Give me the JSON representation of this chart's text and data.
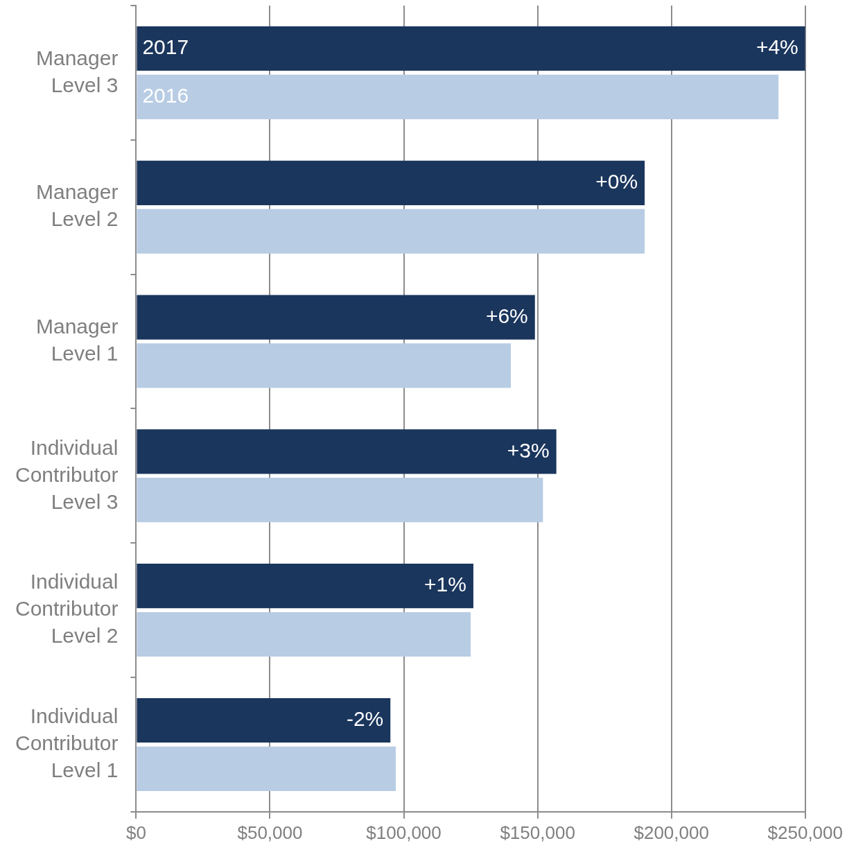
{
  "chart_data": {
    "type": "bar",
    "orientation": "horizontal",
    "categories": [
      "Manager Level 3",
      "Manager Level 2",
      "Manager Level 1",
      "Individual Contributor Level 3",
      "Individual Contributor Level 2",
      "Individual Contributor Level 1"
    ],
    "series": [
      {
        "name": "2017",
        "color": "#1b365d",
        "values": [
          250000,
          190000,
          149000,
          157000,
          126000,
          95000
        ]
      },
      {
        "name": "2016",
        "color": "#b8cce4",
        "values": [
          240000,
          190000,
          140000,
          152000,
          125000,
          97000
        ]
      }
    ],
    "annotations": [
      {
        "text": "+4%",
        "x": 250000,
        "y": "Manager Level 3"
      },
      {
        "text": "+0%",
        "x": 190000,
        "y": "Manager Level 2"
      },
      {
        "text": "+6%",
        "x": 149000,
        "y": "Manager Level 1"
      },
      {
        "text": "+3%",
        "x": 157000,
        "y": "Individual Contributor Level 3"
      },
      {
        "text": "+1%",
        "x": 126000,
        "y": "Individual Contributor Level 2"
      },
      {
        "text": "-2%",
        "x": 95000,
        "y": "Individual Contributor Level 1"
      }
    ],
    "xlim": [
      0,
      250000
    ],
    "xticks": [
      {
        "value": 0,
        "label": "$0"
      },
      {
        "value": 50000,
        "label": "$50,000"
      },
      {
        "value": 100000,
        "label": "$100,000"
      },
      {
        "value": 150000,
        "label": "$150,000"
      },
      {
        "value": 200000,
        "label": "$200,000"
      },
      {
        "value": 250000,
        "label": "$250,000"
      }
    ],
    "grid": "x",
    "legend": false
  }
}
